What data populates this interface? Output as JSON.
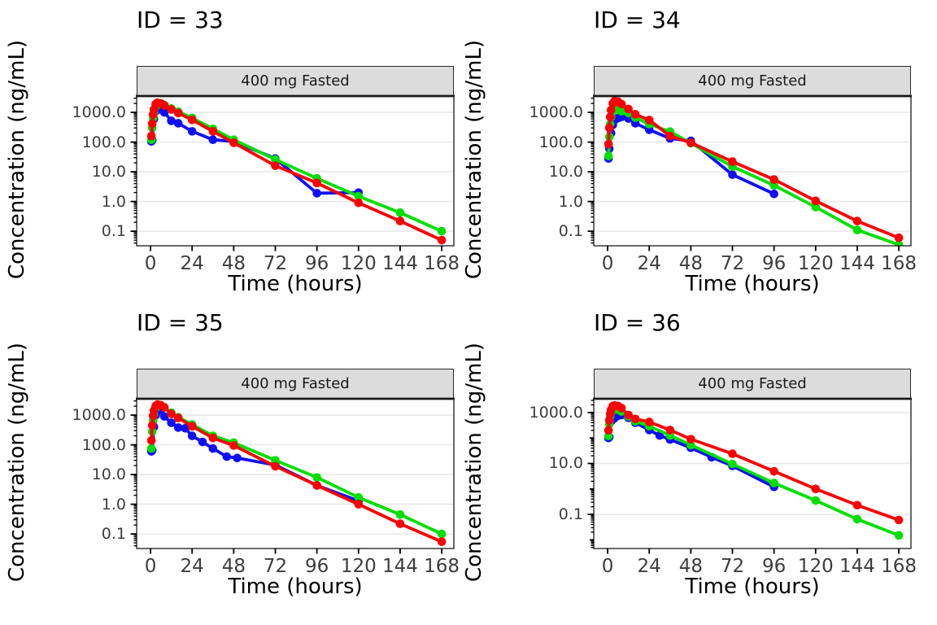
{
  "figure": {
    "background": "#FFFFFF"
  },
  "style": {
    "red": "#FA0000",
    "green": "#00DF00",
    "blue": "#0F0FF5",
    "grid_color": "#E8E8E8",
    "strip_bg": "#DCDCDC",
    "strip_border": "#2A2A2A",
    "panel_border": "#1A1A1A",
    "tick_color": "#000000",
    "tick_label_color": "#3D3D3D"
  },
  "chart_data": [
    {
      "type": "line",
      "title": "ID = 33",
      "strip": "400 mg Fasted",
      "xlabel": "Time (hours)",
      "ylabel": "Concentration (ng/mL)",
      "x_ticks": [
        0,
        24,
        48,
        72,
        96,
        120,
        144,
        168
      ],
      "x_range": [
        -8,
        175
      ],
      "y_log_range": [
        -1.49,
        3.55
      ],
      "y_ticks": [
        {
          "v": 1000,
          "label": "1000.0"
        },
        {
          "v": 100,
          "label": "100.0"
        },
        {
          "v": 10,
          "label": "10.0"
        },
        {
          "v": 1,
          "label": "1.0"
        },
        {
          "v": 0.1,
          "label": "0.1"
        }
      ],
      "gridlines": [
        1000,
        100,
        10,
        1,
        0.1
      ],
      "series": [
        {
          "name": "blue",
          "color": "blue",
          "x": [
            0.5,
            1,
            2,
            3,
            4,
            6,
            8,
            12,
            16,
            24,
            36,
            48,
            72,
            96,
            120
          ],
          "y": [
            105,
            115,
            600,
            1100,
            1300,
            1250,
            1000,
            520,
            430,
            230,
            120,
            105,
            28,
            1.9,
            2.0
          ]
        },
        {
          "name": "green",
          "color": "green",
          "x": [
            0.5,
            1,
            1.5,
            2,
            3,
            4,
            6,
            8,
            12,
            16,
            24,
            36,
            48,
            72,
            96,
            120,
            144,
            168
          ],
          "y": [
            120,
            300,
            650,
            1000,
            1600,
            1900,
            1950,
            1750,
            1350,
            1050,
            650,
            280,
            120,
            26,
            6,
            1.5,
            0.42,
            0.1
          ]
        },
        {
          "name": "red",
          "color": "red",
          "x": [
            0.5,
            1,
            1.5,
            2,
            3,
            4,
            6,
            8,
            12,
            16,
            24,
            36,
            48,
            72,
            96,
            120,
            144,
            168
          ],
          "y": [
            160,
            420,
            850,
            1250,
            1900,
            2100,
            2000,
            1700,
            1250,
            950,
            560,
            230,
            95,
            16,
            4.2,
            0.9,
            0.22,
            0.05
          ]
        }
      ]
    },
    {
      "type": "line",
      "title": "ID = 34",
      "strip": "400 mg Fasted",
      "xlabel": "Time (hours)",
      "ylabel": "Concentration (ng/mL)",
      "x_ticks": [
        0,
        24,
        48,
        72,
        96,
        120,
        144,
        168
      ],
      "x_range": [
        -8,
        175
      ],
      "y_log_range": [
        -1.49,
        3.55
      ],
      "y_ticks": [
        {
          "v": 1000,
          "label": "1000.0"
        },
        {
          "v": 100,
          "label": "100.0"
        },
        {
          "v": 10,
          "label": "10.0"
        },
        {
          "v": 1,
          "label": "1.0"
        },
        {
          "v": 0.1,
          "label": "0.1"
        }
      ],
      "gridlines": [
        1000,
        100,
        10,
        1,
        0.1
      ],
      "series": [
        {
          "name": "blue",
          "color": "blue",
          "x": [
            0.5,
            1,
            2,
            3,
            4,
            6,
            8,
            12,
            16,
            24,
            36,
            48,
            72,
            96
          ],
          "y": [
            28,
            60,
            200,
            380,
            550,
            640,
            700,
            620,
            430,
            260,
            133,
            110,
            8,
            1.8
          ]
        },
        {
          "name": "green",
          "color": "green",
          "x": [
            0.5,
            1,
            1.5,
            2,
            3,
            4,
            6,
            8,
            12,
            16,
            24,
            36,
            48,
            72,
            96,
            120,
            144,
            168
          ],
          "y": [
            34,
            150,
            400,
            700,
            1100,
            1300,
            1250,
            1100,
            950,
            670,
            400,
            225,
            92,
            15,
            3.5,
            0.65,
            0.11,
            0.035
          ]
        },
        {
          "name": "red",
          "color": "red",
          "x": [
            0.5,
            1,
            1.5,
            2,
            3,
            4,
            6,
            8,
            12,
            16,
            24,
            36,
            48,
            72,
            96,
            120,
            144,
            168
          ],
          "y": [
            85,
            300,
            700,
            1200,
            2000,
            2400,
            2300,
            1900,
            1300,
            860,
            550,
            160,
            95,
            22,
            5.5,
            1.05,
            0.22,
            0.06
          ]
        }
      ]
    },
    {
      "type": "line",
      "title": "ID = 35",
      "strip": "400 mg Fasted",
      "xlabel": "Time (hours)",
      "ylabel": "Concentration (ng/mL)",
      "x_ticks": [
        0,
        24,
        48,
        72,
        96,
        120,
        144,
        168
      ],
      "x_range": [
        -8,
        175
      ],
      "y_log_range": [
        -1.49,
        3.55
      ],
      "y_ticks": [
        {
          "v": 1000,
          "label": "1000.0"
        },
        {
          "v": 100,
          "label": "100.0"
        },
        {
          "v": 10,
          "label": "10.0"
        },
        {
          "v": 1,
          "label": "1.0"
        },
        {
          "v": 0.1,
          "label": "0.1"
        }
      ],
      "gridlines": [
        1000,
        100,
        10,
        1,
        0.1
      ],
      "series": [
        {
          "name": "blue",
          "color": "blue",
          "x": [
            0.5,
            1,
            2,
            3,
            4,
            6,
            8,
            12,
            16,
            20,
            24,
            30,
            36,
            44,
            50,
            72,
            96,
            120
          ],
          "y": [
            60,
            65,
            400,
            1000,
            1350,
            1550,
            900,
            550,
            380,
            360,
            200,
            125,
            75,
            40,
            36,
            21,
            4.3,
            1.3
          ]
        },
        {
          "name": "green",
          "color": "green",
          "x": [
            0.5,
            1,
            1.5,
            2,
            3,
            4,
            6,
            8,
            12,
            16,
            24,
            36,
            48,
            72,
            96,
            120,
            144,
            168
          ],
          "y": [
            75,
            280,
            650,
            1050,
            1750,
            2050,
            2150,
            1850,
            1200,
            850,
            480,
            200,
            118,
            30,
            8,
            1.7,
            0.45,
            0.1
          ]
        },
        {
          "name": "red",
          "color": "red",
          "x": [
            0.5,
            1,
            1.5,
            2,
            3,
            4,
            6,
            8,
            12,
            16,
            24,
            36,
            48,
            72,
            96,
            120,
            144,
            168
          ],
          "y": [
            140,
            450,
            950,
            1450,
            2050,
            2250,
            2150,
            1800,
            1100,
            800,
            420,
            170,
            95,
            19,
            4.3,
            1.0,
            0.22,
            0.055
          ]
        }
      ]
    },
    {
      "type": "line",
      "title": "ID = 36",
      "strip": "400 mg Fasted",
      "xlabel": "Time (hours)",
      "ylabel": "Concentration (ng/mL)",
      "x_ticks": [
        0,
        24,
        48,
        72,
        96,
        120,
        144,
        168
      ],
      "x_range": [
        -8,
        175
      ],
      "y_log_range": [
        -2.34,
        3.54
      ],
      "y_ticks": [
        {
          "v": 1000,
          "label": "1000.0"
        },
        {
          "v": 10,
          "label": "10.0"
        },
        {
          "v": 0.1,
          "label": "0.1"
        }
      ],
      "gridlines": [
        1000,
        10,
        0.1
      ],
      "series": [
        {
          "name": "blue",
          "color": "blue",
          "x": [
            0.5,
            1,
            2,
            3,
            4,
            6,
            8,
            12,
            16,
            24,
            30,
            36,
            48,
            60,
            72,
            96
          ],
          "y": [
            100,
            110,
            450,
            650,
            600,
            750,
            800,
            620,
            400,
            205,
            125,
            87,
            41,
            17.5,
            8,
            1.2
          ]
        },
        {
          "name": "green",
          "color": "green",
          "x": [
            0.5,
            1,
            1.5,
            2,
            3,
            4,
            6,
            8,
            12,
            16,
            24,
            36,
            48,
            72,
            96,
            120,
            144,
            168
          ],
          "y": [
            120,
            350,
            700,
            1000,
            1350,
            1400,
            1300,
            1100,
            700,
            450,
            290,
            125,
            53,
            9.5,
            1.7,
            0.35,
            0.065,
            0.015
          ]
        },
        {
          "name": "red",
          "color": "red",
          "x": [
            0.5,
            1,
            1.5,
            2,
            3,
            4,
            6,
            8,
            12,
            16,
            24,
            36,
            48,
            72,
            96,
            120,
            144,
            168
          ],
          "y": [
            200,
            500,
            900,
            1300,
            1800,
            1900,
            1800,
            1500,
            800,
            560,
            425,
            205,
            90,
            24,
            4.9,
            1.0,
            0.23,
            0.06
          ]
        }
      ]
    }
  ]
}
